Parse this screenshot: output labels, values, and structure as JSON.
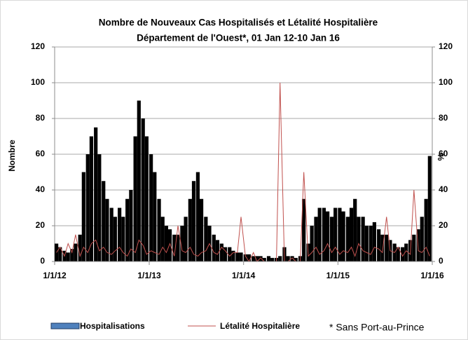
{
  "chart_data": {
    "type": "bar_line",
    "title": [
      "Nombre de Nouveaux Cas Hospitalisés et Létalité Hospitalière",
      "Département de l'Ouest*, 01 Jan 12-10 Jan 16"
    ],
    "y_label": "Nombre",
    "y2_label": "%",
    "annotation": "* Sans Port-au-Prince",
    "x": [
      "1/1/12",
      "1/15/12",
      "2/1/12",
      "2/15/12",
      "3/1/12",
      "3/15/12",
      "4/1/12",
      "4/15/12",
      "5/1/12",
      "5/15/12",
      "6/1/12",
      "6/15/12",
      "7/1/12",
      "7/15/12",
      "8/1/12",
      "8/15/12",
      "9/1/12",
      "9/15/12",
      "10/1/12",
      "10/15/12",
      "11/1/12",
      "11/15/12",
      "12/1/12",
      "12/15/12",
      "1/1/13",
      "1/15/13",
      "2/1/13",
      "2/15/13",
      "3/1/13",
      "3/15/13",
      "4/1/13",
      "4/15/13",
      "5/1/13",
      "5/15/13",
      "6/1/13",
      "6/15/13",
      "7/1/13",
      "7/15/13",
      "8/1/13",
      "8/15/13",
      "9/1/13",
      "9/15/13",
      "10/1/13",
      "10/15/13",
      "11/1/13",
      "11/15/13",
      "12/1/13",
      "12/15/13",
      "1/1/14",
      "1/15/14",
      "2/1/14",
      "2/15/14",
      "3/1/14",
      "3/15/14",
      "4/1/14",
      "4/15/14",
      "5/1/14",
      "5/15/14",
      "6/1/14",
      "6/15/14",
      "7/1/14",
      "7/15/14",
      "8/1/14",
      "8/15/14",
      "9/1/14",
      "9/15/14",
      "10/1/14",
      "10/15/14",
      "11/1/14",
      "11/15/14",
      "12/1/14",
      "12/15/14",
      "1/1/15",
      "1/15/15",
      "2/1/15",
      "2/15/15",
      "3/1/15",
      "3/15/15",
      "4/1/15",
      "4/15/15",
      "5/1/15",
      "5/15/15",
      "6/1/15",
      "6/15/15",
      "7/1/15",
      "7/15/15",
      "8/1/15",
      "8/15/15",
      "9/1/15",
      "9/15/15",
      "10/1/15",
      "10/15/15",
      "11/1/15",
      "11/15/15",
      "12/1/15",
      "12/15/15"
    ],
    "series": [
      {
        "name": "Hospitalisations",
        "color": "#000000",
        "axis": "y",
        "values": [
          10,
          8,
          6,
          5,
          7,
          10,
          15,
          50,
          60,
          70,
          75,
          60,
          45,
          35,
          30,
          25,
          30,
          25,
          35,
          40,
          70,
          90,
          80,
          70,
          60,
          50,
          35,
          25,
          20,
          18,
          15,
          15,
          20,
          25,
          35,
          45,
          50,
          35,
          25,
          20,
          15,
          12,
          10,
          8,
          8,
          6,
          5,
          5,
          4,
          4,
          3,
          3,
          3,
          2,
          3,
          2,
          2,
          3,
          8,
          3,
          3,
          2,
          3,
          35,
          10,
          20,
          25,
          30,
          30,
          28,
          25,
          30,
          30,
          28,
          25,
          30,
          35,
          25,
          25,
          20,
          20,
          22,
          18,
          15,
          15,
          12,
          10,
          8,
          8,
          10,
          12,
          15,
          18,
          25,
          35,
          59
        ]
      },
      {
        "name": "Létalité Hospitalière",
        "color": "#c0504d",
        "axis": "y2",
        "values": [
          5,
          8,
          3,
          10,
          5,
          15,
          3,
          8,
          5,
          10,
          12,
          6,
          8,
          5,
          4,
          6,
          8,
          5,
          3,
          7,
          5,
          12,
          9,
          4,
          6,
          5,
          4,
          8,
          5,
          10,
          3,
          20,
          6,
          5,
          8,
          4,
          3,
          5,
          6,
          10,
          5,
          4,
          8,
          6,
          3,
          5,
          5,
          25,
          3,
          0,
          5,
          0,
          2,
          0,
          0,
          0,
          0,
          100,
          0,
          0,
          2,
          0,
          0,
          50,
          3,
          5,
          8,
          4,
          6,
          10,
          5,
          8,
          4,
          6,
          5,
          8,
          3,
          10,
          6,
          5,
          4,
          8,
          7,
          5,
          25,
          6,
          5,
          8,
          3,
          6,
          4,
          40,
          6,
          5,
          8,
          3
        ]
      }
    ],
    "xlim": [
      "1/1/12",
      "1/1/16"
    ],
    "xticks": [
      "1/1/12",
      "1/1/13",
      "1/1/14",
      "1/1/15",
      "1/1/16"
    ],
    "ylim": [
      0,
      120
    ],
    "yticks": [
      0,
      20,
      40,
      60,
      80,
      100,
      120
    ],
    "y2lim": [
      0,
      120
    ],
    "y2ticks": [
      0,
      20,
      40,
      60,
      80,
      100,
      120
    ],
    "grid": true
  }
}
